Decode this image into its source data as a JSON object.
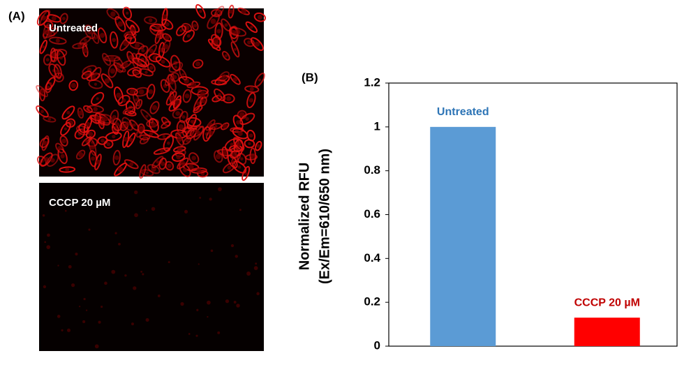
{
  "panel_a": {
    "label": "(A)",
    "images": [
      "Untreated",
      "CCCP 20 µM"
    ]
  },
  "chart_data": {
    "type": "bar",
    "panel_label": "(B)",
    "ylabel": [
      "Normalized RFU",
      "(Ex/Em=610/650 nm)"
    ],
    "categories": [
      "Untreated",
      "CCCP 20 µM"
    ],
    "values": [
      1,
      0.13
    ],
    "colors": [
      "#5b9bd5",
      "#ff0000"
    ],
    "label_colors": [
      "#2e75b6",
      "#c00000"
    ],
    "ylim": [
      0,
      1.2
    ],
    "yticks": [
      0,
      0.2,
      0.4,
      0.6,
      0.8,
      1,
      1.2
    ]
  }
}
